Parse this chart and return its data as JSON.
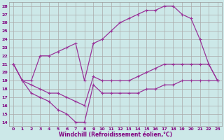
{
  "xlabel": "Windchill (Refroidissement éolien,°C)",
  "bg_color": "#cce8e8",
  "grid_color": "#aaaaaa",
  "line_color": "#993399",
  "xlim_min": -0.5,
  "xlim_max": 23.5,
  "ylim_min": 13.5,
  "ylim_max": 28.5,
  "xticks": [
    0,
    1,
    2,
    3,
    4,
    5,
    6,
    7,
    8,
    9,
    10,
    11,
    12,
    13,
    14,
    15,
    16,
    17,
    18,
    19,
    20,
    21,
    22,
    23
  ],
  "yticks": [
    14,
    15,
    16,
    17,
    18,
    19,
    20,
    21,
    22,
    23,
    24,
    25,
    26,
    27,
    28
  ],
  "line_top_x": [
    0,
    1,
    2,
    3,
    4,
    5,
    6,
    7,
    8,
    9,
    10,
    11,
    12,
    13,
    14,
    15,
    16,
    17,
    18,
    19,
    20,
    21,
    22,
    23
  ],
  "line_top_y": [
    21,
    19,
    19,
    22,
    22,
    22.5,
    23,
    23.5,
    19,
    23.5,
    24,
    25,
    26,
    26.5,
    27,
    27.5,
    27.5,
    28,
    28,
    27,
    26.5,
    24,
    21,
    19
  ],
  "line_mid_x": [
    0,
    1,
    2,
    3,
    4,
    5,
    6,
    7,
    8,
    9,
    10,
    11,
    12,
    13,
    14,
    15,
    16,
    17,
    18,
    19,
    20,
    21,
    22,
    23
  ],
  "line_mid_y": [
    21,
    19,
    18.5,
    18,
    17.5,
    17.5,
    17,
    16.5,
    16,
    19.5,
    19,
    19,
    19,
    19,
    19.5,
    20,
    20.5,
    21,
    21,
    21,
    21,
    21,
    21,
    19
  ],
  "line_bot_x": [
    0,
    1,
    2,
    3,
    4,
    5,
    6,
    7,
    8,
    9,
    10,
    11,
    12,
    13,
    14,
    15,
    16,
    17,
    18,
    19,
    20,
    21,
    22,
    23
  ],
  "line_bot_y": [
    21,
    19,
    17.5,
    17,
    16.5,
    15.5,
    15,
    14,
    14,
    18.5,
    17.5,
    17.5,
    17.5,
    17.5,
    17.5,
    18,
    18,
    18.5,
    18.5,
    19,
    19,
    19,
    19,
    19
  ]
}
